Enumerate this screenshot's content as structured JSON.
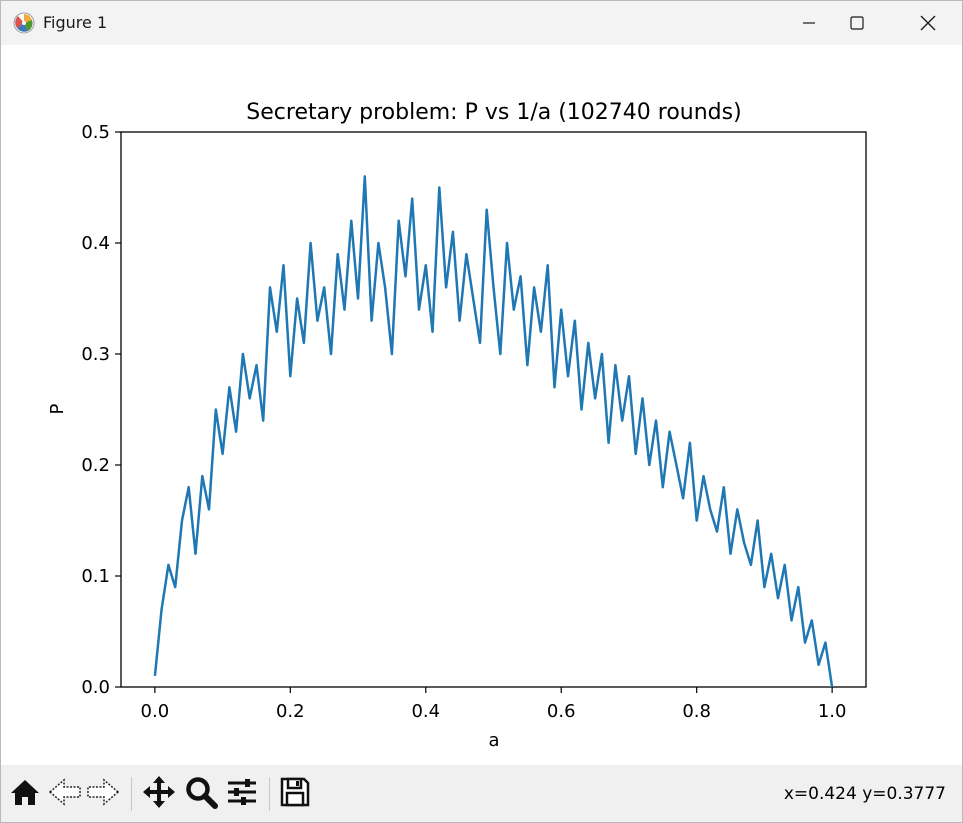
{
  "window": {
    "title": "Figure 1",
    "icons": {
      "app": "matplotlib-icon",
      "minimize": "minimize-icon",
      "maximize": "maximize-icon",
      "close": "close-icon"
    }
  },
  "toolbar": {
    "buttons": [
      {
        "name": "home-icon",
        "tooltip": ""
      },
      {
        "name": "back-icon",
        "tooltip": ""
      },
      {
        "name": "forward-icon",
        "tooltip": ""
      },
      {
        "name": "pan-icon",
        "tooltip": ""
      },
      {
        "name": "zoom-icon",
        "tooltip": ""
      },
      {
        "name": "configure-subplots-icon",
        "tooltip": ""
      },
      {
        "name": "save-icon",
        "tooltip": ""
      }
    ],
    "coords": "x=0.424 y=0.3777"
  },
  "chart_data": {
    "type": "line",
    "title": "Secretary problem: P vs 1/a (102740 rounds)",
    "xlabel": "a",
    "ylabel": "P",
    "xlim": [
      -0.05,
      1.05
    ],
    "ylim": [
      0.0,
      0.5
    ],
    "xticks": [
      "0.0",
      "0.2",
      "0.4",
      "0.6",
      "0.8",
      "1.0"
    ],
    "yticks": [
      "0.0",
      "0.1",
      "0.2",
      "0.3",
      "0.4",
      "0.5"
    ],
    "grid": false,
    "legend": "none",
    "series": [
      {
        "name": "",
        "color": "#1f77b4",
        "x": [
          0.0,
          0.01,
          0.02,
          0.03,
          0.04,
          0.05,
          0.06,
          0.07,
          0.08,
          0.09,
          0.1,
          0.11,
          0.12,
          0.13,
          0.14,
          0.15,
          0.16,
          0.17,
          0.18,
          0.19,
          0.2,
          0.21,
          0.22,
          0.23,
          0.24,
          0.25,
          0.26,
          0.27,
          0.28,
          0.29,
          0.3,
          0.31,
          0.32,
          0.33,
          0.34,
          0.35,
          0.36,
          0.37,
          0.38,
          0.39,
          0.4,
          0.41,
          0.42,
          0.43,
          0.44,
          0.45,
          0.46,
          0.47,
          0.48,
          0.49,
          0.5,
          0.51,
          0.52,
          0.53,
          0.54,
          0.55,
          0.56,
          0.57,
          0.58,
          0.59,
          0.6,
          0.61,
          0.62,
          0.63,
          0.64,
          0.65,
          0.66,
          0.67,
          0.68,
          0.69,
          0.7,
          0.71,
          0.72,
          0.73,
          0.74,
          0.75,
          0.76,
          0.77,
          0.78,
          0.79,
          0.8,
          0.81,
          0.82,
          0.83,
          0.84,
          0.85,
          0.86,
          0.87,
          0.88,
          0.89,
          0.9,
          0.91,
          0.92,
          0.93,
          0.94,
          0.95,
          0.96,
          0.97,
          0.98,
          0.99,
          1.0
        ],
        "y": [
          0.01,
          0.07,
          0.11,
          0.09,
          0.15,
          0.18,
          0.12,
          0.19,
          0.16,
          0.25,
          0.21,
          0.27,
          0.23,
          0.3,
          0.26,
          0.29,
          0.24,
          0.36,
          0.32,
          0.38,
          0.28,
          0.35,
          0.31,
          0.4,
          0.33,
          0.36,
          0.3,
          0.39,
          0.34,
          0.42,
          0.35,
          0.46,
          0.33,
          0.4,
          0.36,
          0.3,
          0.42,
          0.37,
          0.44,
          0.34,
          0.38,
          0.32,
          0.45,
          0.36,
          0.41,
          0.33,
          0.39,
          0.35,
          0.31,
          0.43,
          0.36,
          0.3,
          0.4,
          0.34,
          0.37,
          0.29,
          0.36,
          0.32,
          0.38,
          0.27,
          0.34,
          0.28,
          0.33,
          0.25,
          0.31,
          0.26,
          0.3,
          0.22,
          0.29,
          0.24,
          0.28,
          0.21,
          0.26,
          0.2,
          0.24,
          0.18,
          0.23,
          0.2,
          0.17,
          0.22,
          0.15,
          0.19,
          0.16,
          0.14,
          0.18,
          0.12,
          0.16,
          0.13,
          0.11,
          0.15,
          0.09,
          0.12,
          0.08,
          0.11,
          0.06,
          0.09,
          0.04,
          0.06,
          0.02,
          0.04,
          0.0
        ]
      }
    ]
  }
}
